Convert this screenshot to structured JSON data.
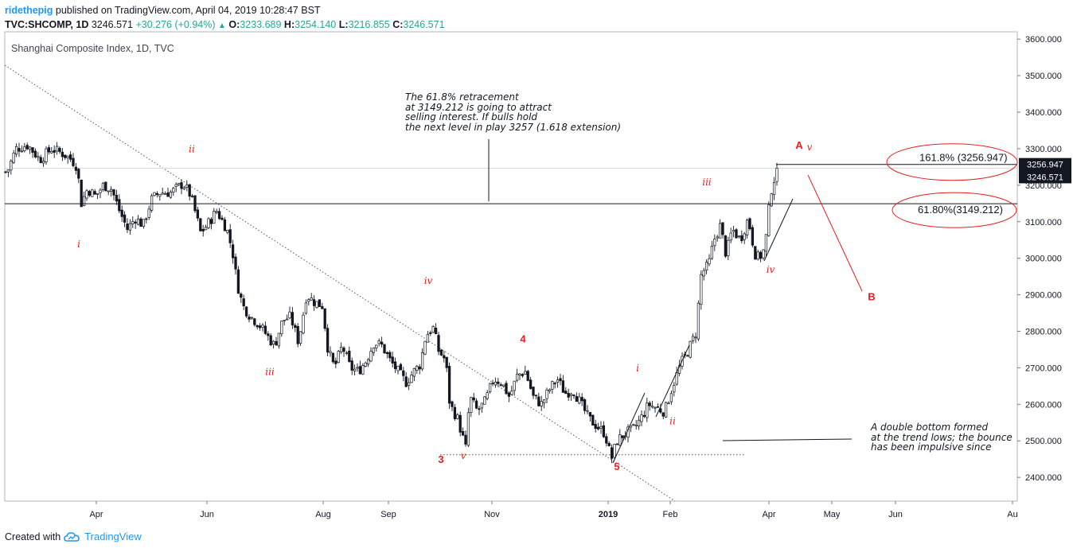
{
  "header": {
    "user": "ridethepig",
    "published": "published on TradingView.com, April 04, 2019 10:28:47 BST",
    "symbol": "TVC:SHCOMP, 1D",
    "last": "3246.571",
    "change": "+30.276 (+0.94%)",
    "o_label": "O:",
    "o_value": "3233.689",
    "h_label": "H:",
    "h_value": "3254.140",
    "l_label": "L:",
    "l_value": "3216.855",
    "c_label": "C:",
    "c_value": "3246.571"
  },
  "footer": {
    "created": "Created with",
    "brand": "TradingView",
    "logo_icon": "tradingview-cloud-icon"
  },
  "annotations": {
    "top_note": "The 61.8% retracement\nat 3149.212 is going to attract\nselling interest. If bulls hold\nthe next level in play 3257 (1.618 extension)",
    "bottom_note": "A double bottom formed\nat the trend lows; the bounce\nhas been impulsive since"
  },
  "colors": {
    "wave_red": "#e91e1e",
    "up": "#ffffff",
    "down": "#131722",
    "grid": "#e0e3eb",
    "label_bg": "#131722"
  },
  "chart_data": {
    "type": "candlestick",
    "title": "Shanghai Composite Index, 1D, TVC",
    "x_tick_labels": [
      "Apr",
      "Jun",
      "Aug",
      "Sep",
      "Nov",
      "2019",
      "Feb",
      "Apr",
      "May",
      "Jun",
      "Au"
    ],
    "y_ticks": [
      "2400.000",
      "2500.000",
      "2600.000",
      "2700.000",
      "2800.000",
      "2900.000",
      "3000.000",
      "3100.000",
      "3200.000",
      "3300.000",
      "3400.000",
      "3500.000",
      "3600.000"
    ],
    "ylim": [
      2335,
      3620
    ],
    "last_price_label": "3246.571",
    "level_label": "3256.947",
    "fib_levels": [
      {
        "label": "161.8% (3256.947)",
        "value": 3256.947
      },
      {
        "label": "61.80%(3149.212)",
        "value": 3149.212
      }
    ],
    "price_path": [
      [
        0,
        3280
      ],
      [
        8,
        3230
      ],
      [
        20,
        3300
      ],
      [
        35,
        3310
      ],
      [
        50,
        3270
      ],
      [
        65,
        3300
      ],
      [
        80,
        3285
      ],
      [
        90,
        3270
      ],
      [
        97,
        3250
      ],
      [
        102,
        3150
      ],
      [
        110,
        3190
      ],
      [
        120,
        3170
      ],
      [
        130,
        3200
      ],
      [
        140,
        3190
      ],
      [
        150,
        3130
      ],
      [
        160,
        3080
      ],
      [
        170,
        3110
      ],
      [
        180,
        3090
      ],
      [
        190,
        3160
      ],
      [
        200,
        3180
      ],
      [
        215,
        3180
      ],
      [
        230,
        3205
      ],
      [
        240,
        3170
      ],
      [
        252,
        3070
      ],
      [
        260,
        3090
      ],
      [
        272,
        3130
      ],
      [
        285,
        3080
      ],
      [
        292,
        3020
      ],
      [
        298,
        2930
      ],
      [
        305,
        2870
      ],
      [
        315,
        2840
      ],
      [
        325,
        2820
      ],
      [
        335,
        2790
      ],
      [
        345,
        2760
      ],
      [
        355,
        2830
      ],
      [
        365,
        2840
      ],
      [
        375,
        2770
      ],
      [
        385,
        2900
      ],
      [
        395,
        2880
      ],
      [
        405,
        2870
      ],
      [
        412,
        2750
      ],
      [
        420,
        2700
      ],
      [
        430,
        2760
      ],
      [
        440,
        2700
      ],
      [
        450,
        2690
      ],
      [
        460,
        2720
      ],
      [
        470,
        2770
      ],
      [
        480,
        2760
      ],
      [
        490,
        2720
      ],
      [
        500,
        2690
      ],
      [
        510,
        2660
      ],
      [
        520,
        2690
      ],
      [
        528,
        2710
      ],
      [
        535,
        2790
      ],
      [
        545,
        2810
      ],
      [
        550,
        2750
      ],
      [
        560,
        2720
      ],
      [
        565,
        2600
      ],
      [
        575,
        2560
      ],
      [
        585,
        2480
      ],
      [
        590,
        2620
      ],
      [
        600,
        2580
      ],
      [
        610,
        2610
      ],
      [
        620,
        2670
      ],
      [
        630,
        2660
      ],
      [
        640,
        2620
      ],
      [
        650,
        2680
      ],
      [
        660,
        2690
      ],
      [
        670,
        2620
      ],
      [
        680,
        2600
      ],
      [
        690,
        2640
      ],
      [
        700,
        2670
      ],
      [
        710,
        2630
      ],
      [
        720,
        2640
      ],
      [
        730,
        2600
      ],
      [
        740,
        2560
      ],
      [
        750,
        2540
      ],
      [
        760,
        2520
      ],
      [
        768,
        2450
      ],
      [
        775,
        2500
      ],
      [
        785,
        2520
      ],
      [
        795,
        2530
      ],
      [
        805,
        2560
      ],
      [
        815,
        2600
      ],
      [
        825,
        2590
      ],
      [
        835,
        2580
      ],
      [
        845,
        2650
      ],
      [
        855,
        2710
      ],
      [
        865,
        2750
      ],
      [
        875,
        2800
      ],
      [
        880,
        2950
      ],
      [
        885,
        2970
      ],
      [
        890,
        2980
      ],
      [
        897,
        3050
      ],
      [
        905,
        3090
      ],
      [
        912,
        3010
      ],
      [
        920,
        3080
      ],
      [
        930,
        3050
      ],
      [
        940,
        3110
      ],
      [
        945,
        3050
      ],
      [
        950,
        3000
      ],
      [
        958,
        3010
      ],
      [
        962,
        3050
      ],
      [
        968,
        3180
      ],
      [
        973,
        3220
      ],
      [
        978,
        3246.571
      ]
    ],
    "wave_labels": [
      {
        "text": "ii",
        "x": 241,
        "price": 3290,
        "style": "italic"
      },
      {
        "text": "i",
        "x": 99,
        "price": 3030,
        "style": "italic"
      },
      {
        "text": "iii",
        "x": 339,
        "price": 2680,
        "style": "italic"
      },
      {
        "text": "iv",
        "x": 538,
        "price": 2930,
        "style": "italic"
      },
      {
        "text": "3",
        "x": 554,
        "price": 2440,
        "style": "bold"
      },
      {
        "text": "v",
        "x": 582,
        "price": 2450,
        "style": "italic"
      },
      {
        "text": "4",
        "x": 657,
        "price": 2770,
        "style": "bold"
      },
      {
        "text": "5",
        "x": 775,
        "price": 2420,
        "style": "bold"
      },
      {
        "text": "i",
        "x": 801,
        "price": 2690,
        "style": "italic"
      },
      {
        "text": "ii",
        "x": 845,
        "price": 2545,
        "style": "italic"
      },
      {
        "text": "iii",
        "x": 888,
        "price": 3200,
        "style": "italic"
      },
      {
        "text": "iv",
        "x": 968,
        "price": 2960,
        "style": "italic"
      },
      {
        "text": "A",
        "x": 1004,
        "price": 3300,
        "style": "bold"
      },
      {
        "text": "v",
        "x": 1017,
        "price": 3296,
        "style": "italic"
      },
      {
        "text": "B",
        "x": 1095,
        "price": 2885,
        "style": "bold"
      }
    ]
  }
}
